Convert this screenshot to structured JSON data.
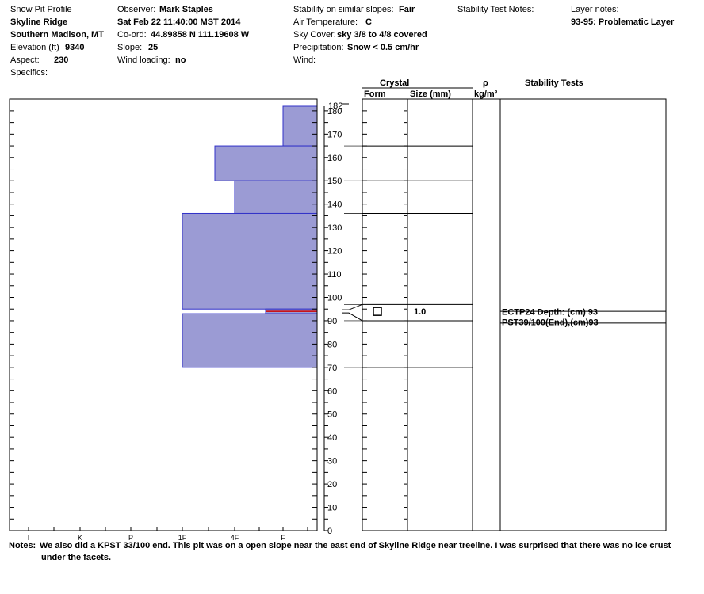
{
  "header": {
    "title": "Snow Pit Profile",
    "location_name": "Skyline Ridge",
    "region": "Southern Madison, MT",
    "elevation_label": "Elevation (ft)",
    "elevation_value": "9340",
    "aspect_label": "Aspect:",
    "aspect_value": "230",
    "specifics_label": "Specifics:",
    "observer_label": "Observer:",
    "observer_value": "Mark Staples",
    "datetime": "Sat Feb 22 11:40:00 MST 2014",
    "coord_label": "Co-ord:",
    "coord_value": "44.89858 N 111.19608 W",
    "slope_label": "Slope:",
    "slope_value": "25",
    "wind_loading_label": "Wind loading:",
    "wind_loading_value": "no",
    "stability_label": "Stability on similar slopes:",
    "stability_value": "Fair",
    "air_temp_label": "Air Temperature:",
    "air_temp_value": "C",
    "sky_cover_label": "Sky Cover:",
    "sky_cover_value": "sky 3/8 to 4/8 covered",
    "precip_label": "Precipitation:",
    "precip_value": "Snow < 0.5 cm/hr",
    "wind_label": "Wind:",
    "stability_test_notes_label": "Stability Test Notes:",
    "layer_notes_label": "Layer notes:",
    "layer_notes_value": "93-95: Problematic Layer"
  },
  "columns": {
    "crystal": "Crystal",
    "form": "Form",
    "size": "Size (mm)",
    "rho": "ρ",
    "density_unit": "kg/m³",
    "stability_tests": "Stability Tests"
  },
  "notes": {
    "label": "Notes:",
    "line1": "We also did a KPST 33/100 end. This pit was on a open slope near the east end of Skyline Ridge near treeline. I was surprised that there was no ice crust",
    "line2": "under the facets."
  },
  "chart_data": {
    "type": "bar",
    "title": "Snow Pit Profile",
    "y_unit": "cm",
    "ylim": [
      0,
      182
    ],
    "y_ticks": [
      0,
      10,
      20,
      30,
      40,
      50,
      60,
      70,
      80,
      90,
      100,
      110,
      120,
      130,
      140,
      150,
      160,
      170,
      180
    ],
    "y_top_label": "182",
    "hardness_ticks": [
      "I",
      "K",
      "P",
      "1F",
      "4F",
      "F"
    ],
    "layers": [
      {
        "top": 182,
        "bottom": 165,
        "hardness": "F"
      },
      {
        "top": 165,
        "bottom": 150,
        "hardness": "4F+"
      },
      {
        "top": 150,
        "bottom": 136,
        "hardness": "4F"
      },
      {
        "top": 136,
        "bottom": 95,
        "hardness": "1F"
      },
      {
        "top": 95,
        "bottom": 93,
        "hardness": "F+"
      },
      {
        "top": 93,
        "bottom": 70,
        "hardness": "1F"
      }
    ],
    "layer_boundaries": [
      165,
      150,
      136,
      97,
      90,
      70
    ],
    "weak_layer_cm": 94,
    "crystal_layers": [
      {
        "depth": 94,
        "form_icon": "square-icon",
        "size_mm": "1.0"
      }
    ],
    "stability_tests": [
      {
        "text": "ECTP24   Depth: (cm) 93"
      },
      {
        "text": "PST39/100(End),(cm)93"
      }
    ],
    "colors": {
      "layer_fill": "#9b9bd4",
      "layer_edge": "#3030c8",
      "weak_layer": "#cc0000"
    }
  }
}
